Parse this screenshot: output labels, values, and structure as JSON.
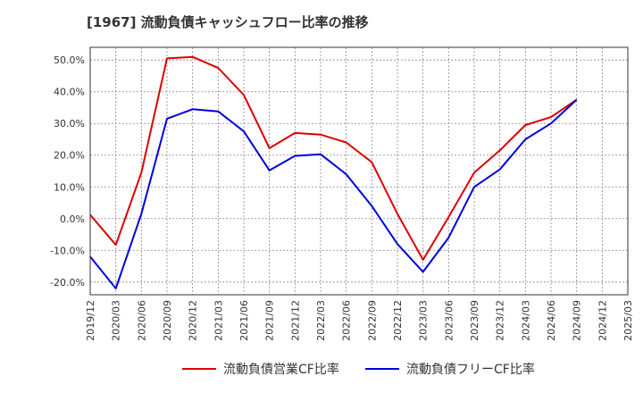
{
  "chart_data": {
    "type": "line",
    "title": "[1967]  流動負債キャッシュフロー比率の推移",
    "xlabel": "",
    "ylabel": "",
    "categories": [
      "2019/12",
      "2020/03",
      "2020/06",
      "2020/09",
      "2020/12",
      "2021/03",
      "2021/06",
      "2021/09",
      "2021/12",
      "2022/03",
      "2022/06",
      "2022/09",
      "2022/12",
      "2023/03",
      "2023/06",
      "2023/09",
      "2023/12",
      "2024/03",
      "2024/06",
      "2024/09",
      "2024/12",
      "2025/03"
    ],
    "yticks": [
      "-20.0%",
      "-10.0%",
      "0.0%",
      "10.0%",
      "20.0%",
      "30.0%",
      "40.0%",
      "50.0%"
    ],
    "ylim": [
      -24,
      54
    ],
    "grid": true,
    "legend_position": "bottom",
    "series": [
      {
        "name": "流動負債営業CF比率",
        "color": "#dd0000",
        "values": [
          1.2,
          -8.3,
          14.5,
          50.5,
          51.0,
          47.5,
          39.0,
          22.2,
          27.0,
          26.5,
          24.0,
          17.8,
          1.5,
          -13.0,
          0.5,
          14.5,
          21.5,
          29.5,
          32.0,
          37.5,
          null,
          null
        ]
      },
      {
        "name": "流動負債フリーCF比率",
        "color": "#0000dd",
        "values": [
          -12.0,
          -22.0,
          1.5,
          31.5,
          34.5,
          33.8,
          27.5,
          15.2,
          19.8,
          20.3,
          14.0,
          4.0,
          -8.0,
          -16.8,
          -6.0,
          10.0,
          15.5,
          25.0,
          30.0,
          37.5,
          null,
          null
        ]
      }
    ]
  }
}
